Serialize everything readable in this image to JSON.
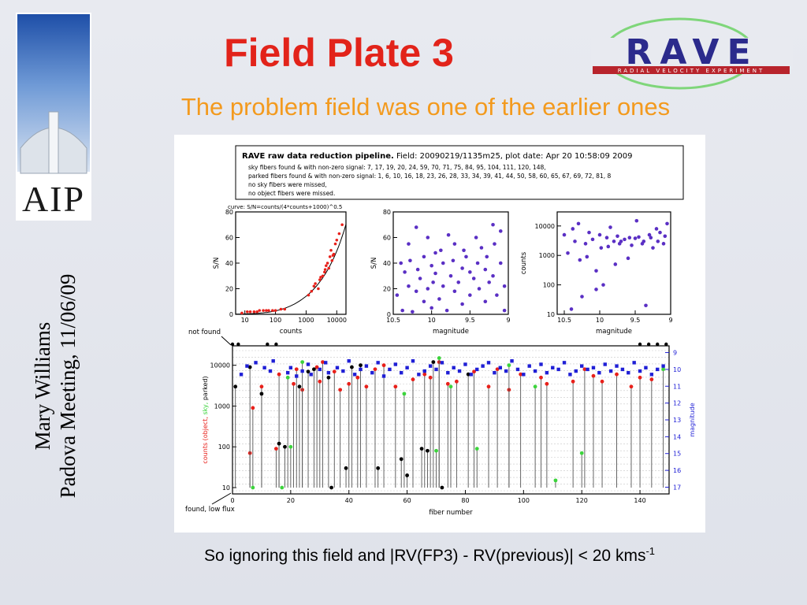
{
  "slide": {
    "title": "Field Plate 3",
    "subtitle": "The problem field was one of the earlier ones",
    "caption_main": "So ignoring this field and |RV(FP3) - RV(previous)| < 20 kms",
    "caption_sup": "-1"
  },
  "sidebar": {
    "logo_text": "AIP",
    "author": "Mary Williams",
    "event": "Padova Meeting, 11/06/09"
  },
  "rave_logo": {
    "wordmark": "RAVE",
    "tagline": "RADIAL VELOCITY EXPERIMENT"
  },
  "figure": {
    "header_bold": "RAVE raw data reduction pipeline.",
    "header_rest": " Field: 20090219/1135m25, plot date: Apr 20 10:58:09 2009",
    "line_sky": "sky fibers found & with non-zero signal: 7, 17, 19, 20, 24, 59, 70, 71, 75, 84, 95, 104, 111, 120, 148,",
    "line_parked": "parked fibers found & with non-zero signal: 1, 6, 10, 16, 18, 23, 26, 28, 33, 34, 39, 41, 44, 50, 58, 60, 65, 67, 69, 72, 81, 8",
    "line_nosky": "no sky fibers were missed,",
    "line_noobj": "no object fibers were missed.",
    "not_found_label": "not found",
    "found_low_label": "found, low flux"
  },
  "chart_data": [
    {
      "type": "scatter",
      "title": "curve: S/N=counts/(4*counts+1000)^0.5",
      "xlabel": "counts",
      "ylabel": "S/N",
      "xscale": "log",
      "xlim": [
        5,
        20000
      ],
      "ylim": [
        0,
        80
      ],
      "x_ticks": [
        "10",
        "100",
        "1000",
        "10000"
      ],
      "y_ticks": [
        "0",
        "20",
        "40",
        "60",
        "80"
      ],
      "series": [
        {
          "color": "#e8201a",
          "x": [
            8,
            12,
            15,
            20,
            25,
            30,
            40,
            50,
            60,
            80,
            100,
            150,
            200,
            1200,
            1500,
            1800,
            2000,
            2500,
            2800,
            3000,
            3500,
            4000,
            4200,
            4500,
            5000,
            5500,
            6000,
            6500,
            7000,
            7500,
            8000,
            9000,
            10000,
            12000,
            15000
          ],
          "y": [
            1,
            2,
            2,
            2,
            2,
            3,
            3,
            3,
            3,
            3,
            3,
            4,
            4,
            15,
            18,
            22,
            24,
            20,
            27,
            29,
            30,
            33,
            35,
            38,
            40,
            36,
            45,
            50,
            42,
            46,
            47,
            55,
            58,
            63,
            70
          ]
        }
      ],
      "curve": "S/N = counts/sqrt(4*counts+1000)"
    },
    {
      "type": "scatter",
      "xlabel": "magnitude",
      "ylabel": "S/N",
      "xlim": [
        10.5,
        9
      ],
      "ylim": [
        0,
        80
      ],
      "x_ticks": [
        "10.5",
        "10",
        "9.5",
        "9"
      ],
      "y_ticks": [
        "0",
        "20",
        "40",
        "60",
        "80"
      ],
      "series": [
        {
          "color": "#5a2fc4",
          "x": [
            10.45,
            10.4,
            10.38,
            10.35,
            10.3,
            10.3,
            10.28,
            10.25,
            10.2,
            10.2,
            10.18,
            10.15,
            10.1,
            10.1,
            10.05,
            10.05,
            10.0,
            10.0,
            9.98,
            9.95,
            9.95,
            9.9,
            9.88,
            9.85,
            9.85,
            9.8,
            9.78,
            9.75,
            9.72,
            9.7,
            9.7,
            9.65,
            9.6,
            9.6,
            9.58,
            9.55,
            9.5,
            9.5,
            9.45,
            9.42,
            9.4,
            9.38,
            9.35,
            9.3,
            9.3,
            9.28,
            9.25,
            9.2,
            9.2,
            9.18,
            9.15,
            9.1,
            9.1,
            9.05,
            9.05
          ],
          "y": [
            15,
            40,
            3,
            33,
            55,
            22,
            42,
            2,
            68,
            18,
            35,
            28,
            10,
            45,
            60,
            20,
            38,
            5,
            25,
            48,
            32,
            12,
            50,
            22,
            40,
            3,
            62,
            30,
            42,
            18,
            55,
            25,
            36,
            8,
            50,
            45,
            15,
            33,
            28,
            60,
            40,
            20,
            52,
            10,
            35,
            45,
            25,
            70,
            30,
            55,
            15,
            40,
            65,
            22,
            3
          ]
        }
      ]
    },
    {
      "type": "scatter",
      "xlabel": "magnitude",
      "ylabel": "counts",
      "yscale": "log",
      "xlim": [
        10.6,
        9
      ],
      "ylim": [
        10,
        30000
      ],
      "x_ticks": [
        "10.5",
        "10",
        "9.5",
        "9"
      ],
      "y_ticks": [
        "10",
        "100",
        "1000",
        "10000"
      ],
      "series": [
        {
          "color": "#5a2fc4",
          "x": [
            10.5,
            10.45,
            10.4,
            10.38,
            10.35,
            10.3,
            10.28,
            10.25,
            10.2,
            10.18,
            10.15,
            10.1,
            10.05,
            10.05,
            10.0,
            9.98,
            9.95,
            9.9,
            9.88,
            9.85,
            9.8,
            9.78,
            9.75,
            9.72,
            9.7,
            9.65,
            9.6,
            9.58,
            9.55,
            9.5,
            9.48,
            9.45,
            9.4,
            9.38,
            9.35,
            9.3,
            9.28,
            9.25,
            9.2,
            9.18,
            9.15,
            9.1,
            9.08,
            9.05
          ],
          "y": [
            5000,
            1200,
            15,
            8000,
            3000,
            12000,
            700,
            40,
            2500,
            900,
            6000,
            3500,
            70,
            300,
            5000,
            1800,
            100,
            4000,
            2000,
            9000,
            3000,
            500,
            4500,
            2500,
            3000,
            3500,
            800,
            4000,
            2200,
            3800,
            15000,
            4200,
            2500,
            3000,
            20,
            5000,
            4000,
            1800,
            8000,
            3000,
            6000,
            2500,
            4500,
            12000
          ]
        }
      ]
    },
    {
      "type": "scatter",
      "xlabel": "fiber number",
      "ylabel": "counts (object, sky, parked)",
      "y2label": "magnitude",
      "yscale": "log",
      "xlim": [
        0,
        150
      ],
      "x_ticks": [
        "0",
        "20",
        "40",
        "60",
        "80",
        "100",
        "120",
        "140"
      ],
      "y_ticks": [
        "10",
        "100",
        "1000",
        "10000"
      ],
      "y2_ticks": [
        "9",
        "10",
        "11",
        "12",
        "13",
        "14",
        "15",
        "16",
        "17"
      ],
      "series": [
        {
          "name": "object",
          "color": "#e8201a",
          "x": [
            6,
            7,
            10,
            15,
            16,
            21,
            22,
            24,
            29,
            30,
            31,
            35,
            37,
            40,
            43,
            46,
            49,
            52,
            56,
            62,
            66,
            68,
            71,
            74,
            77,
            83,
            88,
            91,
            95,
            99,
            106,
            108,
            117,
            121,
            124,
            127,
            132,
            137,
            140,
            144
          ],
          "y": [
            70,
            900,
            3000,
            90,
            6000,
            3500,
            8000,
            2500,
            9000,
            4000,
            12000,
            7000,
            2500,
            3500,
            5000,
            3000,
            8000,
            10000,
            3000,
            4500,
            6000,
            5000,
            12000,
            3500,
            4000,
            7000,
            3000,
            8000,
            2500,
            6000,
            5000,
            3500,
            4000,
            8000,
            5500,
            4000,
            6000,
            3000,
            5000,
            4500
          ]
        },
        {
          "name": "sky",
          "color": "#3cd43c",
          "x": [
            7,
            17,
            19,
            20,
            24,
            59,
            70,
            71,
            75,
            84,
            95,
            104,
            111,
            120,
            148
          ],
          "y": [
            10,
            10,
            5000,
            100,
            12000,
            2000,
            80,
            15000,
            3000,
            90,
            10000,
            3000,
            15,
            70,
            8000
          ]
        },
        {
          "name": "parked",
          "color": "#000000",
          "x": [
            1,
            6,
            10,
            16,
            18,
            23,
            26,
            28,
            33,
            34,
            39,
            41,
            44,
            50,
            58,
            60,
            65,
            67,
            69,
            72,
            81
          ],
          "y": [
            3000,
            9000,
            2000,
            120,
            100,
            3000,
            7000,
            8000,
            5000,
            10,
            30,
            9000,
            10000,
            30,
            50,
            20,
            90,
            80,
            12000,
            10,
            6000
          ]
        },
        {
          "name": "magnitude",
          "color": "#1f1fd6",
          "x": [
            3,
            5,
            8,
            11,
            13,
            14,
            19,
            20,
            22,
            24,
            26,
            27,
            30,
            32,
            33,
            36,
            38,
            40,
            42,
            44,
            46,
            48,
            50,
            52,
            54,
            56,
            58,
            60,
            62,
            64,
            66,
            68,
            70,
            72,
            74,
            76,
            78,
            80,
            82,
            84,
            86,
            88,
            90,
            92,
            94,
            96,
            98,
            100,
            102,
            104,
            106,
            108,
            110,
            112,
            114,
            116,
            118,
            120,
            122,
            124,
            126,
            128,
            130,
            132,
            134,
            136,
            138,
            140,
            142,
            144,
            146,
            148
          ],
          "y": [
            10.3,
            9.8,
            9.6,
            9.9,
            10.1,
            9.5,
            10.2,
            9.9,
            10.4,
            10.1,
            9.7,
            10.3,
            10.0,
            9.6,
            10.2,
            9.9,
            10.1,
            9.5,
            10.3,
            10.0,
            9.8,
            10.2,
            9.6,
            10.4,
            10.0,
            9.7,
            10.2,
            9.9,
            9.5,
            10.3,
            10.1,
            9.8,
            10.0,
            9.6,
            10.2,
            9.9,
            10.1,
            9.7,
            10.3,
            10.0,
            9.8,
            9.6,
            10.2,
            9.9,
            10.1,
            9.5,
            10.0,
            10.3,
            9.8,
            10.1,
            9.7,
            10.2,
            9.9,
            10.0,
            9.6,
            10.3,
            10.1,
            9.8,
            10.0,
            9.9,
            10.2,
            9.7,
            10.1,
            9.8,
            10.0,
            10.2,
            9.6,
            10.1,
            9.9,
            10.3,
            10.0,
            9.8
          ]
        }
      ]
    }
  ]
}
